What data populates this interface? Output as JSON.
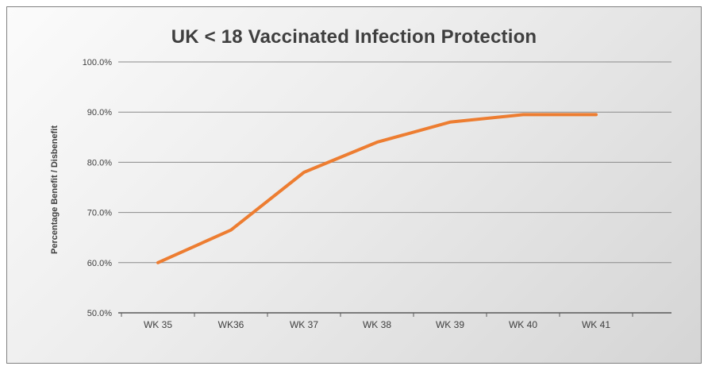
{
  "chart": {
    "title": "UK < 18 Vaccinated Infection Protection",
    "y_axis_title": "Percentage Benefit / Disbenefit"
  },
  "chart_data": {
    "type": "line",
    "title": "UK < 18 Vaccinated Infection Protection",
    "xlabel": "",
    "ylabel": "Percentage Benefit / Disbenefit",
    "categories": [
      "WK 35",
      "WK36",
      "WK 37",
      "WK 38",
      "WK 39",
      "WK 40",
      "WK 41"
    ],
    "series": [
      {
        "name": "Percentage Benefit / Disbenefit",
        "values": [
          60.0,
          66.5,
          78.0,
          84.0,
          88.0,
          89.5,
          89.5
        ]
      }
    ],
    "ylim": [
      50,
      100
    ],
    "ytick_step": 10,
    "ytick_labels": [
      "50.0%",
      "60.0%",
      "70.0%",
      "80.0%",
      "90.0%",
      "100.0%"
    ],
    "grid": true,
    "legend": "none",
    "line_color": "#ED7D31",
    "gridline_color": "#8a8a8a",
    "axis_color": "#595959",
    "text_color": "#404040"
  }
}
